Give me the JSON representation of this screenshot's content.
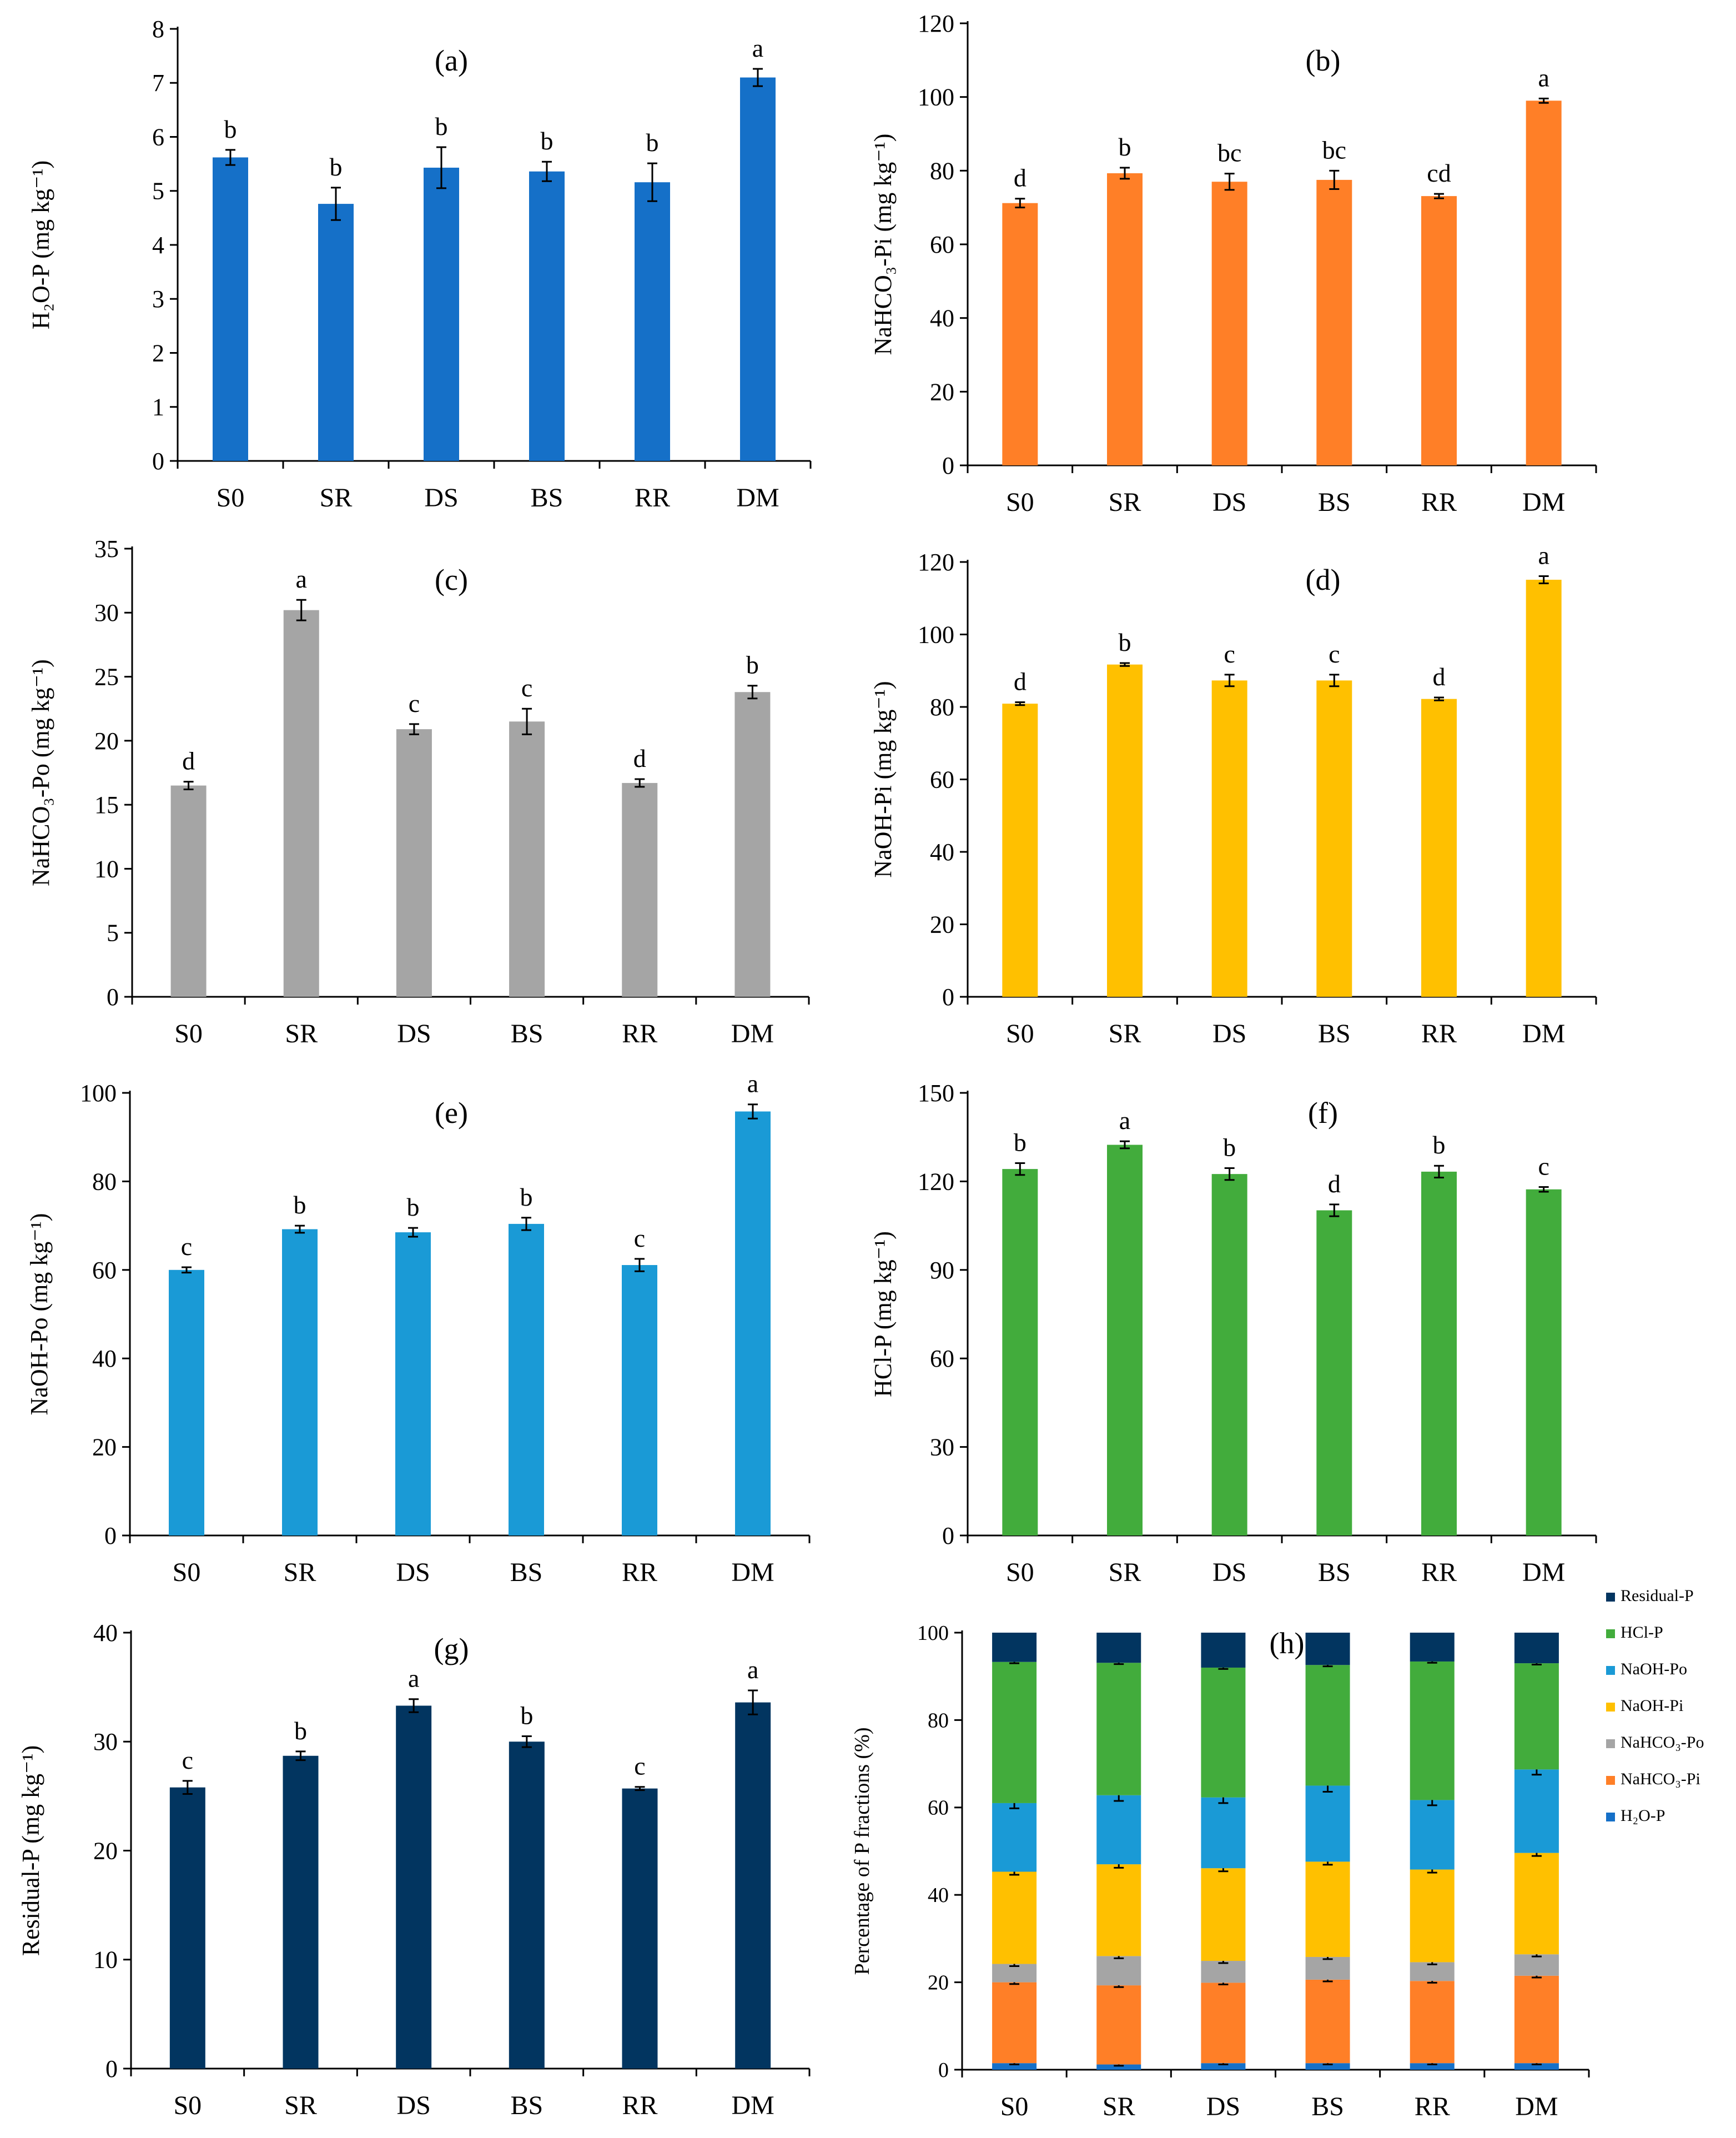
{
  "categories": [
    "S0",
    "SR",
    "DS",
    "BS",
    "RR",
    "DM"
  ],
  "colors": {
    "h2o_p": "#1570C8",
    "nahco3_pi": "#FF7F27",
    "nahco3_po": "#A5A5A5",
    "naoh_pi": "#FFC000",
    "naoh_po": "#1A9AD6",
    "hcl_p": "#42AC3C",
    "residual_p": "#023560",
    "axis": "#000000"
  },
  "chart_data": [
    {
      "type": "bar",
      "panel": "(a)",
      "ylabel": "H₂O-P (mg kg⁻¹)",
      "categories": [
        "S0",
        "SR",
        "DS",
        "BS",
        "RR",
        "DM"
      ],
      "values": [
        5.62,
        4.76,
        5.43,
        5.36,
        5.16,
        7.1
      ],
      "errors": [
        0.14,
        0.3,
        0.38,
        0.18,
        0.35,
        0.16
      ],
      "letters": [
        "b",
        "b",
        "b",
        "b",
        "b",
        "a"
      ],
      "ylim": [
        0,
        8
      ],
      "yticks": [
        0,
        1,
        2,
        3,
        4,
        5,
        6,
        7,
        8
      ],
      "color_key": "h2o_p"
    },
    {
      "type": "bar",
      "panel": "(b)",
      "ylabel": "NaHCO₃-Pi (mg kg⁻¹)",
      "categories": [
        "S0",
        "SR",
        "DS",
        "BS",
        "RR",
        "DM"
      ],
      "values": [
        71.2,
        79.3,
        77.0,
        77.5,
        73.1,
        99.0
      ],
      "errors": [
        1.2,
        1.5,
        2.2,
        2.5,
        0.6,
        0.6
      ],
      "letters": [
        "d",
        "b",
        "bc",
        "bc",
        "cd",
        "a"
      ],
      "ylim": [
        0,
        120
      ],
      "yticks": [
        0,
        20,
        40,
        60,
        80,
        100,
        120
      ],
      "color_key": "nahco3_pi"
    },
    {
      "type": "bar",
      "panel": "(c)",
      "ylabel": "NaHCO₃-Po (mg kg⁻¹)",
      "categories": [
        "S0",
        "SR",
        "DS",
        "BS",
        "RR",
        "DM"
      ],
      "values": [
        16.5,
        30.2,
        20.9,
        21.5,
        16.7,
        23.8
      ],
      "errors": [
        0.3,
        0.8,
        0.4,
        1.0,
        0.3,
        0.5
      ],
      "letters": [
        "d",
        "a",
        "c",
        "c",
        "d",
        "b"
      ],
      "ylim": [
        0,
        35
      ],
      "yticks": [
        0,
        5,
        10,
        15,
        20,
        25,
        30,
        35
      ],
      "color_key": "nahco3_po"
    },
    {
      "type": "bar",
      "panel": "(d)",
      "ylabel": "NaOH-Pi (mg kg⁻¹)",
      "categories": [
        "S0",
        "SR",
        "DS",
        "BS",
        "RR",
        "DM"
      ],
      "values": [
        80.9,
        91.7,
        87.3,
        87.3,
        82.2,
        115.1
      ],
      "errors": [
        0.4,
        0.4,
        1.6,
        1.6,
        0.4,
        1.0
      ],
      "letters": [
        "d",
        "b",
        "c",
        "c",
        "d",
        "a"
      ],
      "ylim": [
        0,
        120
      ],
      "yticks": [
        0,
        20,
        40,
        60,
        80,
        100,
        120
      ],
      "color_key": "naoh_pi"
    },
    {
      "type": "bar",
      "panel": "(e)",
      "ylabel": "NaOH-Po (mg kg⁻¹)",
      "categories": [
        "S0",
        "SR",
        "DS",
        "BS",
        "RR",
        "DM"
      ],
      "values": [
        60.0,
        69.2,
        68.5,
        70.4,
        61.1,
        95.8
      ],
      "errors": [
        0.6,
        0.8,
        1.0,
        1.4,
        1.4,
        1.6
      ],
      "letters": [
        "c",
        "b",
        "b",
        "b",
        "c",
        "a"
      ],
      "ylim": [
        0,
        100
      ],
      "yticks": [
        0,
        20,
        40,
        60,
        80,
        100
      ],
      "color_key": "naoh_po"
    },
    {
      "type": "bar",
      "panel": "(f)",
      "ylabel": "HCl-P (mg kg⁻¹)",
      "categories": [
        "S0",
        "SR",
        "DS",
        "BS",
        "RR",
        "DM"
      ],
      "values": [
        124.2,
        132.4,
        122.5,
        110.2,
        123.3,
        117.3
      ],
      "errors": [
        2.0,
        1.2,
        2.0,
        2.0,
        2.0,
        0.8
      ],
      "letters": [
        "b",
        "a",
        "b",
        "d",
        "b",
        "c"
      ],
      "ylim": [
        0,
        150
      ],
      "yticks": [
        0,
        30,
        60,
        90,
        120,
        150
      ],
      "color_key": "hcl_p"
    },
    {
      "type": "bar",
      "panel": "(g)",
      "ylabel": "Residual-P (mg kg⁻¹)",
      "categories": [
        "S0",
        "SR",
        "DS",
        "BS",
        "RR",
        "DM"
      ],
      "values": [
        25.8,
        28.7,
        33.3,
        30.0,
        25.7,
        33.6
      ],
      "errors": [
        0.6,
        0.4,
        0.6,
        0.5,
        0.15,
        1.1
      ],
      "letters": [
        "c",
        "b",
        "a",
        "b",
        "c",
        "a"
      ],
      "ylim": [
        0,
        40
      ],
      "yticks": [
        0,
        10,
        20,
        30,
        40
      ],
      "color_key": "residual_p"
    },
    {
      "type": "bar",
      "stacked": true,
      "panel": "(h)",
      "ylabel": "Percentage of P fractions (%)",
      "categories": [
        "S0",
        "SR",
        "DS",
        "BS",
        "RR",
        "DM"
      ],
      "ylim": [
        0,
        100
      ],
      "yticks": [
        0,
        20,
        40,
        60,
        80,
        100
      ],
      "series": [
        {
          "name": "H₂O-P",
          "color_key": "h2o_p",
          "values": [
            1.5,
            1.2,
            1.5,
            1.5,
            1.5,
            1.5
          ],
          "errors": [
            0.3,
            0.3,
            0.3,
            0.3,
            0.3,
            0.3
          ]
        },
        {
          "name": "NaHCO₃-Pi",
          "color_key": "nahco3_pi",
          "values": [
            18.5,
            18.1,
            18.4,
            19.1,
            18.8,
            20.0
          ],
          "errors": [
            0.4,
            0.4,
            0.4,
            0.4,
            0.4,
            0.4
          ]
        },
        {
          "name": "NaHCO₃-Po",
          "color_key": "nahco3_po",
          "values": [
            4.2,
            6.7,
            5.0,
            5.2,
            4.3,
            4.9
          ],
          "errors": [
            0.5,
            0.5,
            0.5,
            0.5,
            0.5,
            0.5
          ]
        },
        {
          "name": "NaOH-Pi",
          "color_key": "naoh_pi",
          "values": [
            21.1,
            21.0,
            21.2,
            21.8,
            21.2,
            23.2
          ],
          "errors": [
            0.7,
            0.8,
            0.7,
            0.7,
            0.7,
            0.7
          ]
        },
        {
          "name": "NaOH-Po",
          "color_key": "naoh_po",
          "values": [
            15.7,
            15.8,
            16.2,
            17.4,
            15.9,
            19.1
          ],
          "errors": [
            1.2,
            1.3,
            1.3,
            1.4,
            1.2,
            1.2
          ]
        },
        {
          "name": "HCl-P",
          "color_key": "hcl_p",
          "values": [
            32.3,
            30.3,
            29.7,
            27.6,
            31.7,
            24.3
          ],
          "errors": [
            0.3,
            0.3,
            0.3,
            0.3,
            0.3,
            0.3
          ]
        },
        {
          "name": "Residual-P",
          "color_key": "residual_p",
          "values": [
            6.7,
            6.9,
            8.0,
            7.4,
            6.6,
            7.0
          ],
          "errors": [
            0,
            0,
            0,
            0,
            0,
            0
          ]
        }
      ],
      "legend": [
        "Residual-P",
        "HCl-P",
        "NaOH-Po",
        "NaOH-Pi",
        "NaHCO₃-Po",
        "NaHCO₃-Pi",
        "H₂O-P"
      ]
    }
  ]
}
